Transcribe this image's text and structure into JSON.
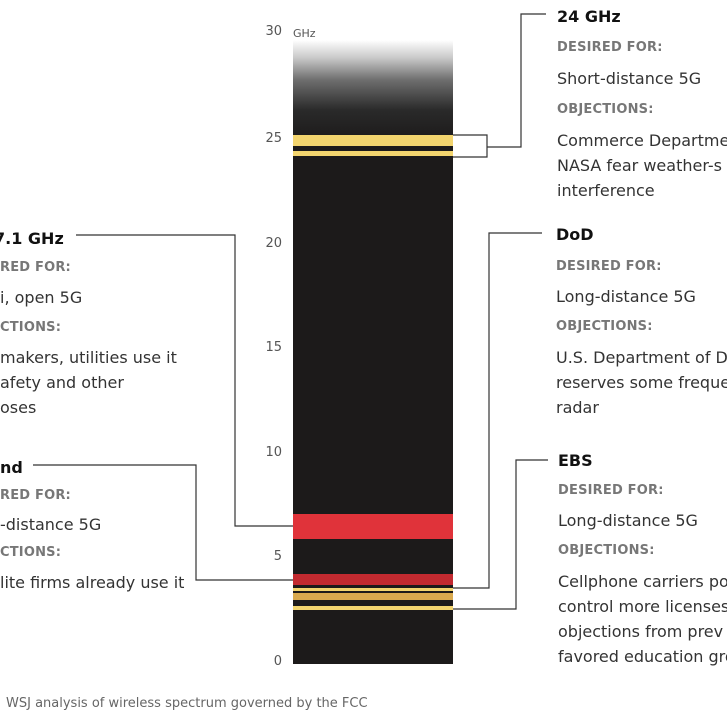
{
  "axis": {
    "unit": "GHz",
    "ticks": [
      "30",
      "25",
      "20",
      "15",
      "10",
      "5",
      "0"
    ]
  },
  "annotations": {
    "ghz24": {
      "title": "24 GHz",
      "desired_label": "DESIRED FOR:",
      "desired": "Short-distance 5G",
      "objections_label": "OBJECTIONS:",
      "objections": [
        "Commerce Departme",
        "NASA fear weather-s",
        "interference"
      ]
    },
    "dod": {
      "title": "DoD",
      "desired_label": "DESIRED FOR:",
      "desired": "Long-distance 5G",
      "objections_label": "OBJECTIONS:",
      "objections": [
        "U.S. Department of D",
        "reserves some freque",
        "radar"
      ]
    },
    "ebs": {
      "title": "EBS",
      "desired_label": "DESIRED FOR:",
      "desired": "Long-distance 5G",
      "objections_label": "OBJECTIONS:",
      "objections": [
        "Cellphone carriers po",
        "control more licenses",
        "objections from prev",
        "favored education gro"
      ]
    },
    "ghz71": {
      "title": "7.1 GHz",
      "desired_label": "RED FOR:",
      "desired": "i, open 5G",
      "objections_label": "CTIONS:",
      "objections": [
        "makers, utilities use it",
        "afety and other",
        "oses"
      ]
    },
    "cband": {
      "title": "nd",
      "desired_label": "RED FOR:",
      "desired": "-distance 5G",
      "objections_label": "CTIONS:",
      "objections": [
        "lite firms already use it"
      ]
    }
  },
  "colors": {
    "bar": "#1c1a1a",
    "yellow_band": "#f2d46e",
    "red_band": "#e0333a",
    "dark_red_band": "#c22a30",
    "tan_band": "#d9a94e",
    "leader_line": "#333333"
  },
  "source": "WSJ analysis of wireless spectrum governed by the FCC"
}
